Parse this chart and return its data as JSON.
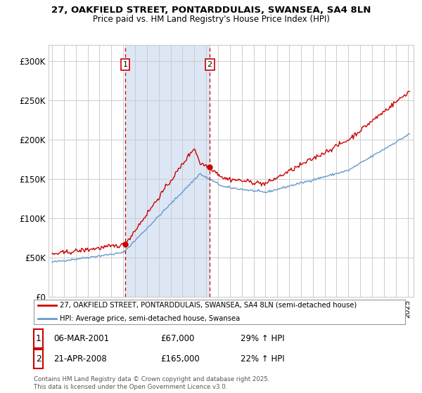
{
  "title_line1": "27, OAKFIELD STREET, PONTARDDULAIS, SWANSEA, SA4 8LN",
  "title_line2": "Price paid vs. HM Land Registry's House Price Index (HPI)",
  "legend_label1": "27, OAKFIELD STREET, PONTARDDULAIS, SWANSEA, SA4 8LN (semi-detached house)",
  "legend_label2": "HPI: Average price, semi-detached house, Swansea",
  "footnote_line1": "Contains HM Land Registry data © Crown copyright and database right 2025.",
  "footnote_line2": "This data is licensed under the Open Government Licence v3.0.",
  "transaction1_label": "1",
  "transaction1_date": "06-MAR-2001",
  "transaction1_price": "£67,000",
  "transaction1_hpi": "29% ↑ HPI",
  "transaction2_label": "2",
  "transaction2_date": "21-APR-2008",
  "transaction2_price": "£165,000",
  "transaction2_hpi": "22% ↑ HPI",
  "line_color_property": "#cc0000",
  "line_color_hpi": "#6699cc",
  "shading_color": "#dce6f4",
  "vline1_x": 2001.17,
  "vline2_x": 2008.3,
  "ylim_max": 320000,
  "yticks": [
    0,
    50000,
    100000,
    150000,
    200000,
    250000,
    300000
  ],
  "ytick_labels": [
    "£0",
    "£50K",
    "£100K",
    "£150K",
    "£200K",
    "£250K",
    "£300K"
  ],
  "xmin": 1994.7,
  "xmax": 2025.5,
  "background_color": "#ffffff",
  "grid_color": "#cccccc"
}
